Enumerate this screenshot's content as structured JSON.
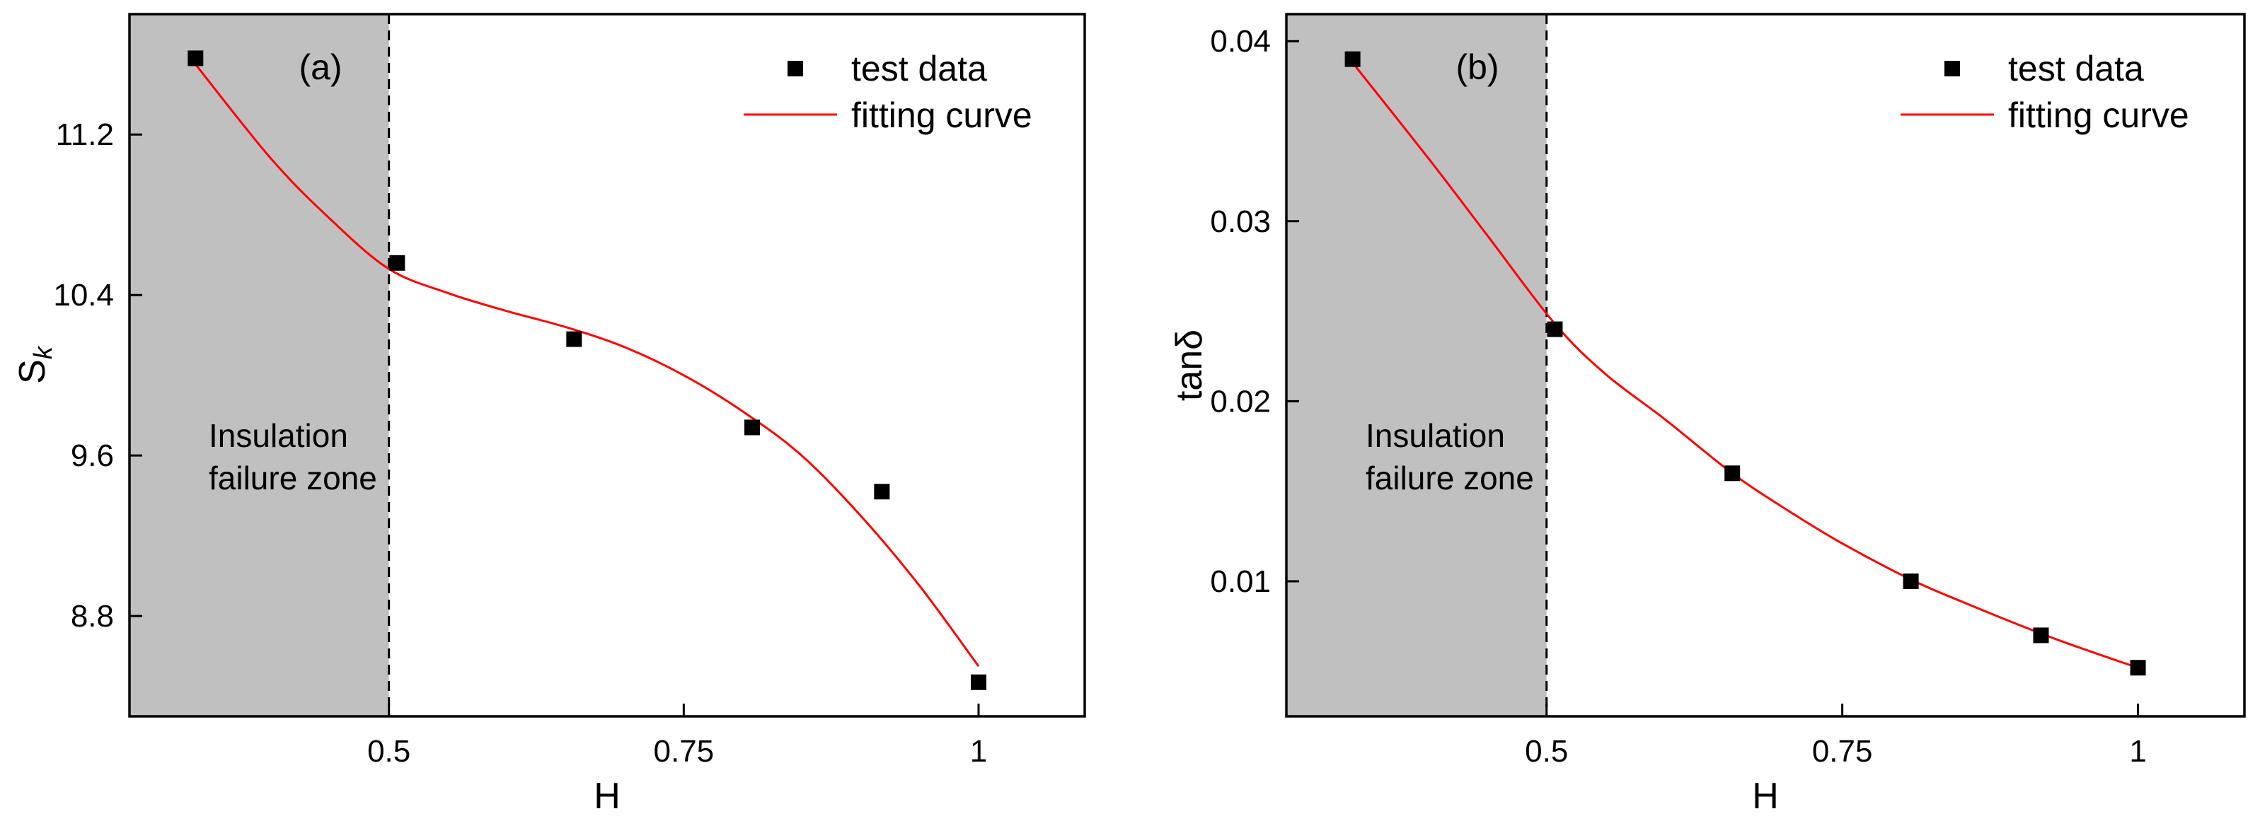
{
  "chart_data": [
    {
      "type": "scatter",
      "panel_label": "(a)",
      "xlabel": "H",
      "ylabel": "S",
      "ylabel_subscript": "k",
      "xlim": [
        0.28,
        1.09
      ],
      "ylim": [
        8.3,
        11.8
      ],
      "xticks": [
        0.5,
        0.75,
        1
      ],
      "xtick_labels": [
        "0.5",
        "0.75",
        "1"
      ],
      "yticks": [
        8.8,
        9.6,
        10.4,
        11.2
      ],
      "ytick_labels": [
        "8.8",
        "9.6",
        "10.4",
        "11.2"
      ],
      "zone": {
        "x_from": 0.28,
        "x_to": 0.5,
        "label_lines": [
          "Insulation",
          "failure zone"
        ],
        "color": "#c0c0c0"
      },
      "legend": {
        "position": "top-right",
        "entries": [
          "test data",
          "fitting curve"
        ]
      },
      "series": [
        {
          "name": "test data",
          "kind": "markers",
          "color": "#000000",
          "x": [
            0.336,
            0.507,
            0.657,
            0.808,
            0.918,
            1.0
          ],
          "y": [
            11.58,
            10.56,
            10.18,
            9.74,
            9.42,
            8.47
          ]
        },
        {
          "name": "fitting curve",
          "kind": "line",
          "color": "#ff0000",
          "x": [
            0.336,
            0.4,
            0.45,
            0.5,
            0.55,
            0.6,
            0.65,
            0.7,
            0.75,
            0.8,
            0.85,
            0.9,
            0.95,
            1.0
          ],
          "y": [
            11.55,
            11.08,
            10.78,
            10.53,
            10.41,
            10.32,
            10.24,
            10.14,
            10.0,
            9.82,
            9.6,
            9.3,
            8.95,
            8.55
          ]
        }
      ]
    },
    {
      "type": "scatter",
      "panel_label": "(b)",
      "xlabel": "H",
      "ylabel": "tanδ",
      "xlim": [
        0.28,
        1.09
      ],
      "ylim": [
        0.0025,
        0.0415
      ],
      "xticks": [
        0.5,
        0.75,
        1
      ],
      "xtick_labels": [
        "0.5",
        "0.75",
        "1"
      ],
      "yticks": [
        0.01,
        0.02,
        0.03,
        0.04
      ],
      "ytick_labels": [
        "0.01",
        "0.02",
        "0.03",
        "0.04"
      ],
      "zone": {
        "x_from": 0.28,
        "x_to": 0.5,
        "label_lines": [
          "Insulation",
          "failure zone"
        ],
        "color": "#c0c0c0"
      },
      "legend": {
        "position": "top-right",
        "entries": [
          "test data",
          "fitting curve"
        ]
      },
      "series": [
        {
          "name": "test data",
          "kind": "markers",
          "color": "#000000",
          "x": [
            0.336,
            0.507,
            0.657,
            0.808,
            0.918,
            1.0
          ],
          "y": [
            0.039,
            0.024,
            0.016,
            0.01,
            0.007,
            0.0052
          ]
        },
        {
          "name": "fitting curve",
          "kind": "line",
          "color": "#ff0000",
          "x": [
            0.336,
            0.4,
            0.45,
            0.507,
            0.55,
            0.6,
            0.657,
            0.7,
            0.75,
            0.808,
            0.85,
            0.918,
            0.96,
            1.0
          ],
          "y": [
            0.0388,
            0.0335,
            0.0292,
            0.0243,
            0.0215,
            0.019,
            0.016,
            0.0141,
            0.0121,
            0.0101,
            0.0089,
            0.0071,
            0.0061,
            0.0052
          ]
        }
      ]
    }
  ]
}
